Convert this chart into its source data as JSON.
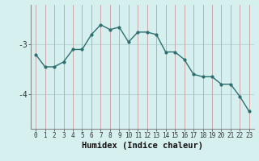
{
  "x": [
    0,
    1,
    2,
    3,
    4,
    5,
    6,
    7,
    8,
    9,
    10,
    11,
    12,
    13,
    14,
    15,
    16,
    17,
    18,
    19,
    20,
    21,
    22,
    23
  ],
  "y": [
    -3.2,
    -3.45,
    -3.45,
    -3.35,
    -3.1,
    -3.1,
    -2.8,
    -2.6,
    -2.7,
    -2.65,
    -2.95,
    -2.75,
    -2.75,
    -2.8,
    -3.15,
    -3.15,
    -3.3,
    -3.6,
    -3.65,
    -3.65,
    -3.8,
    -3.8,
    -4.05,
    -4.35
  ],
  "line_color": "#2e6e6e",
  "marker": "o",
  "marker_size": 2.0,
  "line_width": 1.0,
  "bg_color": "#d6f0ef",
  "hgrid_color": "#b8d8d5",
  "vgrid_color": "#c8a8a8",
  "axis_color": "#888888",
  "xlabel": "Humidex (Indice chaleur)",
  "xlabel_fontsize": 7.5,
  "ytick_labels": [
    "-3",
    "-4"
  ],
  "ytick_vals": [
    -3,
    -4
  ],
  "ylim": [
    -4.7,
    -2.2
  ],
  "xlim": [
    -0.5,
    23.5
  ],
  "tick_fontsize": 7,
  "xtick_fontsize": 5.5
}
